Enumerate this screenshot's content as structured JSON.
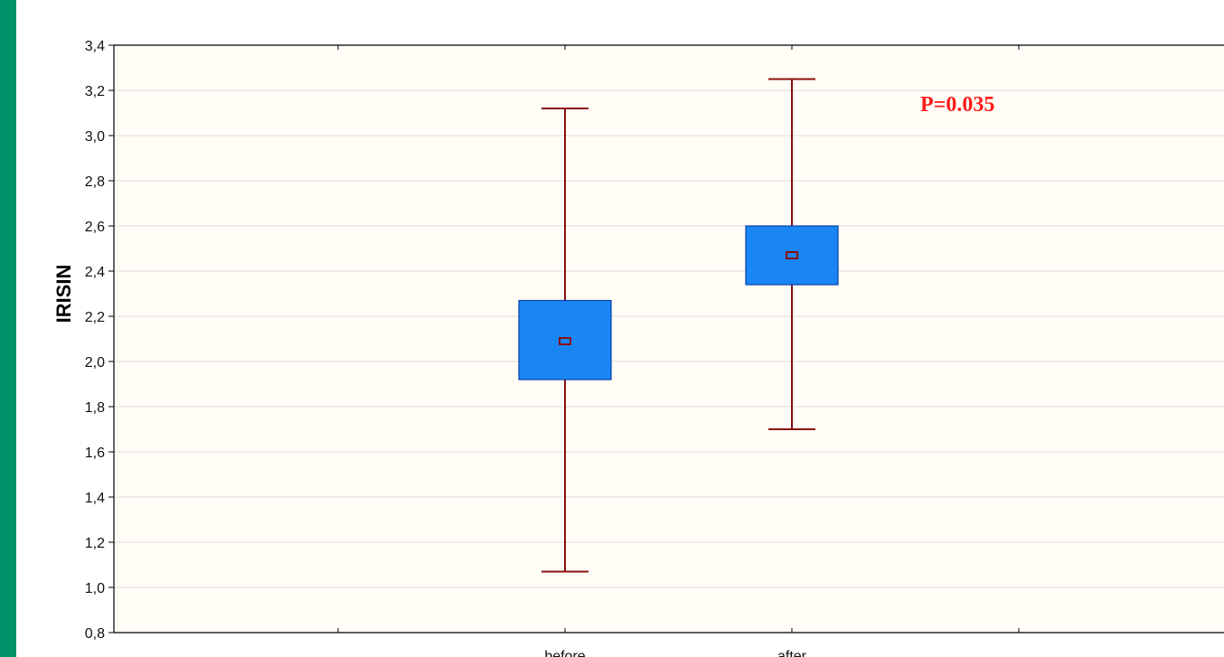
{
  "chart_data": {
    "type": "box",
    "ylabel": "IRISIN",
    "xlabel": "",
    "ylim": [
      0.8,
      3.4
    ],
    "ytick_values": [
      0.8,
      1.0,
      1.2,
      1.4,
      1.6,
      1.8,
      2.0,
      2.2,
      2.4,
      2.6,
      2.8,
      3.0,
      3.2,
      3.4
    ],
    "ytick_labels": [
      "0,8",
      "1,0",
      "1,2",
      "1,4",
      "1,6",
      "1,8",
      "2,0",
      "2,2",
      "2,4",
      "2,6",
      "2,8",
      "3,0",
      "3,2",
      "3,4"
    ],
    "categories": [
      "before",
      "after"
    ],
    "boxes": [
      {
        "category": "before",
        "center": 2.09,
        "box_low": 1.92,
        "box_high": 2.27,
        "whisker_low": 1.07,
        "whisker_high": 3.12
      },
      {
        "category": "after",
        "center": 2.47,
        "box_low": 2.34,
        "box_high": 2.6,
        "whisker_low": 1.7,
        "whisker_high": 3.25
      }
    ],
    "annotation": "P=0.035",
    "grid": true,
    "colors": {
      "box_fill": "#1a86f4",
      "box_edge": "#0b3fa8",
      "whisker": "#8b0f0f",
      "center_marker": "#8b0f0f",
      "annotation": "#ff1a1a",
      "plot_background": "#fffdf6",
      "left_bar": "#009268"
    }
  }
}
